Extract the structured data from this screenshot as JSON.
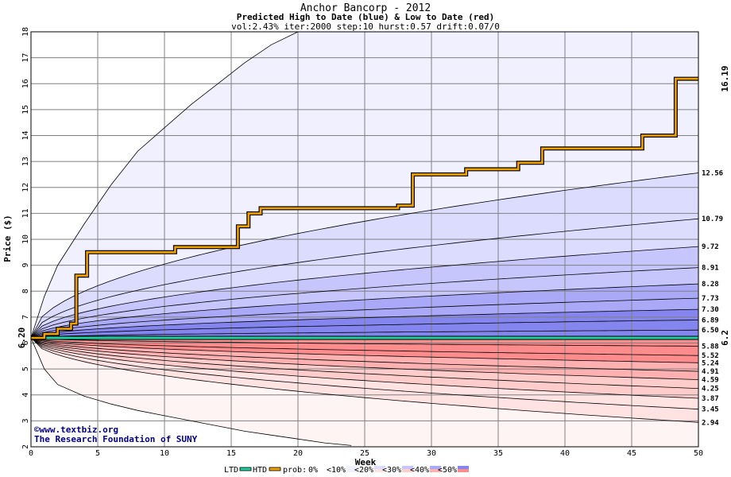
{
  "chart_data": {
    "type": "area",
    "title": "Anchor Bancorp - 2012",
    "subtitle": "Predicted High to Date (blue) &  Low to Date (red)",
    "params": "vol:2.43% iter:2000 step:10 hurst:0.57 drift:0.07/0",
    "xlabel": "Week",
    "ylabel": "Price ($)",
    "xlim": [
      0,
      50
    ],
    "ylim": [
      2,
      18
    ],
    "x_ticks": [
      0,
      5,
      10,
      15,
      20,
      25,
      30,
      35,
      40,
      45,
      50
    ],
    "y_ticks": [
      2,
      3,
      4,
      5,
      6,
      7,
      8,
      9,
      10,
      11,
      12,
      13,
      14,
      15,
      16,
      17,
      18
    ],
    "grid": true,
    "start_price": 6.2,
    "start_label": "6.20",
    "htd_end_label": "16.19",
    "ltd_end_label": "6.2",
    "high_quantiles": [
      {
        "label": "12.56",
        "end": 12.56
      },
      {
        "label": "10.79",
        "end": 10.79
      },
      {
        "label": "9.72",
        "end": 9.72
      },
      {
        "label": "8.91",
        "end": 8.91
      },
      {
        "label": "8.28",
        "end": 8.28
      },
      {
        "label": "7.73",
        "end": 7.73
      },
      {
        "label": "7.30",
        "end": 7.3
      },
      {
        "label": "6.89",
        "end": 6.89
      },
      {
        "label": "6.50",
        "end": 6.5
      }
    ],
    "low_quantiles": [
      {
        "label": "5.88",
        "end": 5.88
      },
      {
        "label": "5.52",
        "end": 5.52
      },
      {
        "label": "5.24",
        "end": 5.24
      },
      {
        "label": "4.91",
        "end": 4.91
      },
      {
        "label": "4.59",
        "end": 4.59
      },
      {
        "label": "4.25",
        "end": 4.25
      },
      {
        "label": "3.87",
        "end": 3.87
      },
      {
        "label": "3.45",
        "end": 3.45
      },
      {
        "label": "2.94",
        "end": 2.94
      }
    ],
    "outer_high_curve": {
      "x": [
        0,
        1,
        2,
        4,
        6,
        8,
        10,
        12,
        14,
        16,
        18,
        20
      ],
      "y": [
        6.2,
        7.8,
        9.0,
        10.6,
        12.1,
        13.4,
        14.3,
        15.2,
        16.0,
        16.8,
        17.5,
        18.0
      ]
    },
    "outer_low_curve": {
      "x": [
        0,
        1,
        2,
        4,
        6,
        8,
        10,
        12,
        14,
        16,
        18,
        20,
        22,
        24
      ],
      "y": [
        6.2,
        5.0,
        4.4,
        3.95,
        3.65,
        3.4,
        3.2,
        3.0,
        2.8,
        2.6,
        2.45,
        2.3,
        2.15,
        2.05
      ]
    },
    "htd_series": {
      "name": "HTD",
      "x": [
        0,
        1,
        1,
        2,
        2,
        3,
        3,
        3.4,
        3.4,
        4.2,
        4.2,
        10.8,
        10.8,
        15.5,
        15.5,
        16.3,
        16.3,
        17.2,
        17.2,
        27.5,
        27.5,
        28.6,
        28.6,
        32.6,
        32.6,
        36.5,
        36.5,
        38.3,
        38.3,
        45.8,
        45.8,
        48.3,
        48.3,
        50
      ],
      "y": [
        6.2,
        6.2,
        6.35,
        6.35,
        6.55,
        6.55,
        6.75,
        6.75,
        8.6,
        8.6,
        9.5,
        9.5,
        9.7,
        9.7,
        10.5,
        10.5,
        11.0,
        11.0,
        11.2,
        11.2,
        11.3,
        11.3,
        12.5,
        12.5,
        12.7,
        12.7,
        12.95,
        12.95,
        13.5,
        13.5,
        14.0,
        14.0,
        16.19,
        16.19
      ]
    },
    "ltd_series": {
      "name": "LTD",
      "x": [
        0,
        50
      ],
      "y": [
        6.2,
        6.2
      ]
    },
    "credit_lines": [
      "©www.textbiz.org",
      "The Research Foundation of SUNY"
    ],
    "legend": {
      "ltd": "LTD",
      "htd": "HTD",
      "prob_prefix": "prob:",
      "items": [
        {
          "label": "0%",
          "color": "#ffffff"
        },
        {
          "label": "<10%",
          "color": "#f0f0ff"
        },
        {
          "label": "<20%",
          "color": "#dcdcff"
        },
        {
          "label": "<30%",
          "color": "#c6c6fd"
        },
        {
          "label": "<40%",
          "color": "#a9a9f8"
        },
        {
          "label": "<50%",
          "color": "#8585f0"
        }
      ],
      "low_colors": [
        "#fff4f4",
        "#ffe2e2",
        "#ffcccc",
        "#ffb0b0",
        "#ff8c8c"
      ]
    },
    "colors": {
      "htd_line": "#f0a000",
      "ltd_line": "#20d0a0",
      "grid": "#808080",
      "htd_label": "#a07000",
      "ltd_label": "#009070",
      "quantile_line": "#000000"
    }
  }
}
